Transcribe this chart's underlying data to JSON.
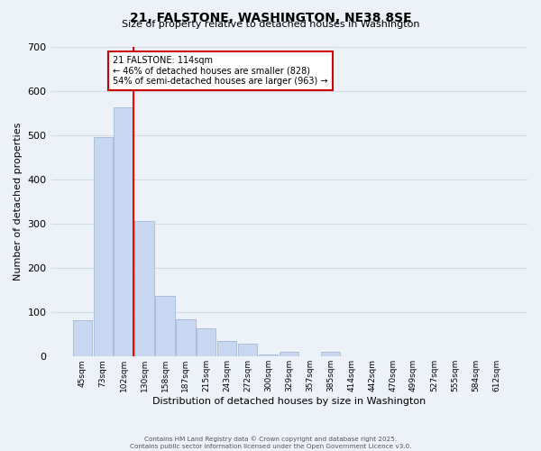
{
  "title": "21, FALSTONE, WASHINGTON, NE38 8SE",
  "subtitle": "Size of property relative to detached houses in Washington",
  "xlabel": "Distribution of detached houses by size in Washington",
  "ylabel": "Number of detached properties",
  "bar_color": "#c8d8f0",
  "bar_edge_color": "#a0b8d8",
  "categories": [
    "45sqm",
    "73sqm",
    "102sqm",
    "130sqm",
    "158sqm",
    "187sqm",
    "215sqm",
    "243sqm",
    "272sqm",
    "300sqm",
    "329sqm",
    "357sqm",
    "385sqm",
    "414sqm",
    "442sqm",
    "470sqm",
    "499sqm",
    "527sqm",
    "555sqm",
    "584sqm",
    "612sqm"
  ],
  "values": [
    83,
    495,
    563,
    307,
    138,
    85,
    63,
    35,
    29,
    5,
    11,
    0,
    10,
    0,
    0,
    0,
    0,
    0,
    0,
    0,
    0
  ],
  "subject_line_color": "red",
  "annotation_title": "21 FALSTONE: 114sqm",
  "annotation_line1": "← 46% of detached houses are smaller (828)",
  "annotation_line2": "54% of semi-detached houses are larger (963) →",
  "footer_line1": "Contains HM Land Registry data © Crown copyright and database right 2025.",
  "footer_line2": "Contains public sector information licensed under the Open Government Licence v3.0.",
  "ylim": [
    0,
    700
  ],
  "yticks": [
    0,
    100,
    200,
    300,
    400,
    500,
    600,
    700
  ],
  "grid_color": "#d0dce8",
  "background_color": "#edf2f8"
}
